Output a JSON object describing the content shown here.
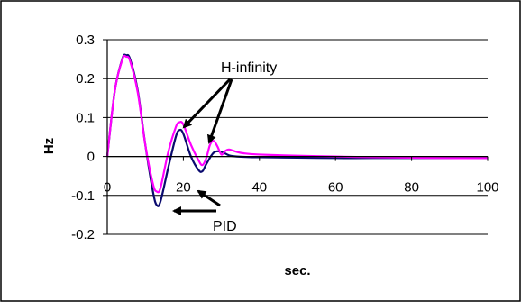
{
  "chart_data": {
    "type": "line",
    "title": "",
    "xlabel": "sec.",
    "ylabel": "Hz",
    "xlim": [
      0,
      100
    ],
    "ylim": [
      -0.2,
      0.3
    ],
    "x_ticks": [
      0,
      20,
      40,
      60,
      80,
      100
    ],
    "y_ticks": [
      0.3,
      0.2,
      0.1,
      0,
      -0.1,
      -0.2
    ],
    "x_tick_labels": [
      "0",
      "20",
      "40",
      "60",
      "80",
      "100"
    ],
    "y_tick_labels": [
      "0.3",
      "0.2",
      "0.1",
      "0",
      "-0.1",
      "-0.2"
    ],
    "grid": "horizontal",
    "legend": "none",
    "series": [
      {
        "color": "#0a0a6e",
        "x": [
          0,
          2,
          4,
          5,
          6,
          8,
          10,
          12,
          13,
          14,
          16,
          18,
          19,
          20,
          22,
          24,
          25,
          26,
          28,
          30,
          32,
          34,
          40,
          50,
          60,
          70,
          80,
          90,
          100
        ],
        "y": [
          0,
          0.17,
          0.252,
          0.26,
          0.25,
          0.17,
          0.03,
          -0.09,
          -0.125,
          -0.115,
          -0.03,
          0.05,
          0.068,
          0.058,
          0.0,
          -0.035,
          -0.038,
          -0.02,
          0.01,
          0.012,
          0.003,
          0.0,
          -0.002,
          -0.003,
          -0.004,
          -0.004,
          -0.004,
          -0.004,
          -0.004
        ]
      },
      {
        "color": "#ff00ff",
        "x": [
          0,
          2,
          4,
          5,
          6,
          8,
          10,
          12,
          13,
          14,
          16,
          18,
          19,
          20,
          22,
          24,
          25,
          26,
          27,
          28,
          29,
          30,
          31,
          32,
          34,
          36,
          40,
          50,
          60,
          70,
          80,
          90,
          100
        ],
        "y": [
          0,
          0.17,
          0.25,
          0.256,
          0.245,
          0.165,
          0.03,
          -0.07,
          -0.09,
          -0.08,
          0.01,
          0.075,
          0.088,
          0.082,
          0.03,
          -0.01,
          -0.022,
          -0.005,
          0.03,
          0.04,
          0.025,
          0.005,
          0.014,
          0.018,
          0.012,
          0.008,
          0.005,
          0.002,
          0.0,
          -0.002,
          -0.003,
          -0.004,
          -0.004
        ]
      }
    ],
    "annotations": [
      {
        "text": "H-infinity"
      },
      {
        "text": "PID"
      }
    ]
  }
}
